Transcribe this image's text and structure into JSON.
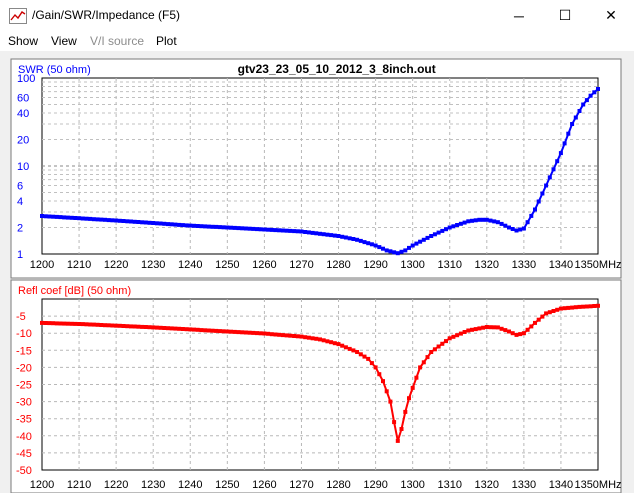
{
  "window": {
    "title": "/Gain/SWR/Impedance (F5)",
    "minimize_glyph": "─",
    "maximize_glyph": "☐",
    "close_glyph": "✕"
  },
  "menu": {
    "items": [
      {
        "label": "Show",
        "enabled": true
      },
      {
        "label": "View",
        "enabled": true
      },
      {
        "label": "V/I source",
        "enabled": false
      },
      {
        "label": "Plot",
        "enabled": true
      }
    ]
  },
  "chart_data": [
    {
      "type": "line",
      "title": "gtv23_23_05_10_2012_3_8inch.out",
      "ylabel": "SWR (50 ohm)",
      "xunit": "MHz",
      "scale": "log",
      "ylim": [
        1,
        100
      ],
      "xlim": [
        1200,
        1350
      ],
      "x_ticks": [
        1200,
        1210,
        1220,
        1230,
        1240,
        1250,
        1260,
        1270,
        1280,
        1290,
        1300,
        1310,
        1320,
        1330,
        1340,
        1350
      ],
      "y_tick_labels": [
        1,
        2,
        4,
        6,
        10,
        20,
        40,
        60,
        100
      ],
      "color": "#0000ff",
      "grid": true,
      "series": [
        {
          "x": [
            1200,
            1210,
            1220,
            1230,
            1240,
            1250,
            1260,
            1270,
            1280,
            1285,
            1290,
            1293,
            1296,
            1298,
            1300,
            1305,
            1310,
            1315,
            1318,
            1320,
            1323,
            1326,
            1328,
            1330,
            1333,
            1336,
            1340,
            1343,
            1346,
            1348,
            1350
          ],
          "values": [
            2.7,
            2.55,
            2.4,
            2.25,
            2.1,
            2.0,
            1.9,
            1.8,
            1.6,
            1.45,
            1.25,
            1.1,
            1.02,
            1.1,
            1.25,
            1.6,
            2.0,
            2.35,
            2.45,
            2.45,
            2.3,
            2.0,
            1.85,
            1.95,
            3.2,
            6.0,
            14,
            30,
            50,
            63,
            75
          ]
        }
      ]
    },
    {
      "type": "line",
      "ylabel": "Refl coef [dB] (50 ohm)",
      "xunit": "MHz",
      "ylim": [
        -50,
        0
      ],
      "xlim": [
        1200,
        1350
      ],
      "x_ticks": [
        1200,
        1210,
        1220,
        1230,
        1240,
        1250,
        1260,
        1270,
        1280,
        1290,
        1300,
        1310,
        1320,
        1330,
        1340,
        1350
      ],
      "y_ticks": [
        -5,
        -10,
        -15,
        -20,
        -25,
        -30,
        -35,
        -40,
        -45,
        -50
      ],
      "color": "#ff0000",
      "grid": true,
      "series": [
        {
          "x": [
            1200,
            1210,
            1220,
            1230,
            1240,
            1250,
            1260,
            1270,
            1275,
            1280,
            1285,
            1288,
            1290,
            1292,
            1293,
            1294,
            1295,
            1296,
            1297,
            1298,
            1299,
            1300,
            1302,
            1305,
            1310,
            1315,
            1320,
            1323,
            1326,
            1328,
            1330,
            1333,
            1336,
            1340,
            1345,
            1350
          ],
          "values": [
            -7.0,
            -7.3,
            -7.8,
            -8.3,
            -8.9,
            -9.5,
            -10.1,
            -11.0,
            -11.8,
            -13.2,
            -15.5,
            -17.5,
            -20.0,
            -24.0,
            -27.0,
            -30.0,
            -36.0,
            -41.5,
            -38.0,
            -33.0,
            -29.0,
            -26.0,
            -20.0,
            -15.5,
            -11.5,
            -9.2,
            -8.2,
            -8.3,
            -9.5,
            -10.5,
            -10.0,
            -7.0,
            -4.2,
            -2.8,
            -2.3,
            -2.0
          ]
        }
      ]
    }
  ]
}
